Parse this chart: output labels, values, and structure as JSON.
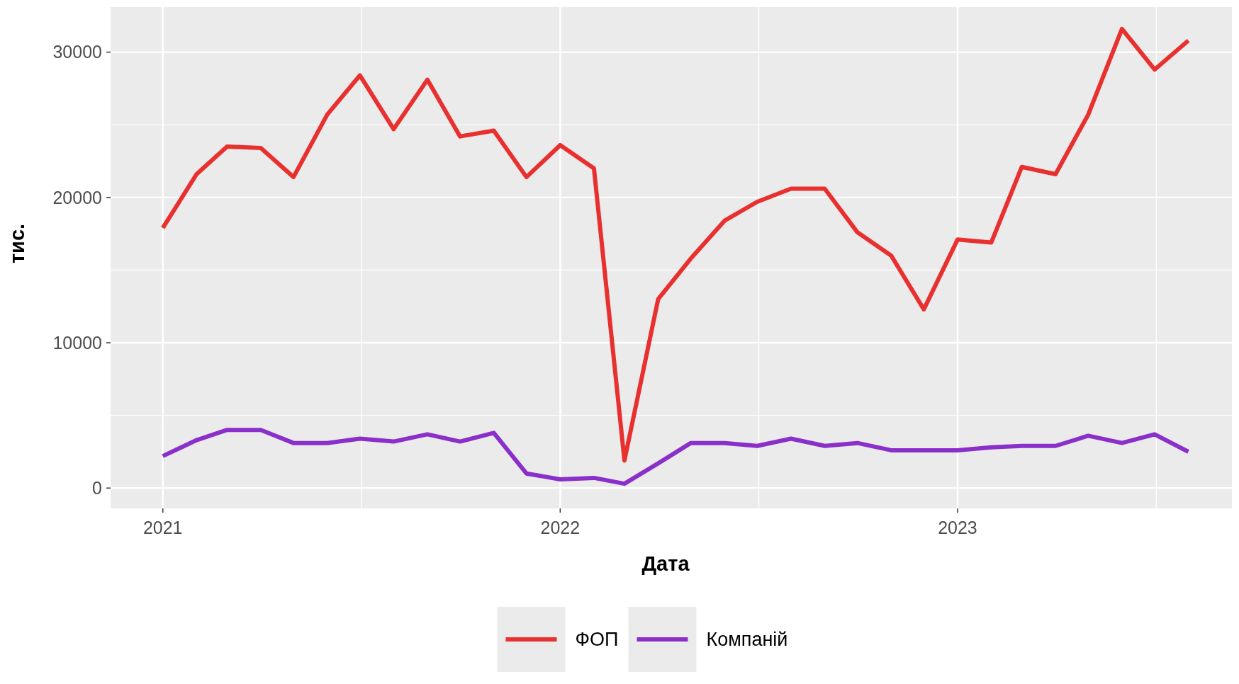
{
  "chart_data": {
    "type": "line",
    "xlabel": "Дата",
    "ylabel": "тис.",
    "x": [
      "2021-01",
      "2021-02",
      "2021-03",
      "2021-04",
      "2021-05",
      "2021-06",
      "2021-07",
      "2021-08",
      "2021-09",
      "2021-10",
      "2021-11",
      "2021-12",
      "2022-01",
      "2022-02",
      "2022-03",
      "2022-04",
      "2022-05",
      "2022-06",
      "2022-07",
      "2022-08",
      "2022-09",
      "2022-10",
      "2022-11",
      "2022-12",
      "2023-01",
      "2023-02",
      "2023-03",
      "2023-04",
      "2023-05",
      "2023-06",
      "2023-07",
      "2023-08"
    ],
    "series": [
      {
        "name": "ФОП",
        "color": "#e8302f",
        "values": [
          17900,
          21600,
          23500,
          23400,
          21400,
          25700,
          28400,
          24700,
          28100,
          24200,
          24600,
          21400,
          23600,
          22000,
          1900,
          13000,
          15800,
          18400,
          19700,
          20600,
          20600,
          17600,
          16000,
          12300,
          17100,
          16900,
          22100,
          21600,
          25700,
          31600,
          28800,
          30800
        ]
      },
      {
        "name": "Компаній",
        "color": "#8a2fc9",
        "values": [
          2200,
          3300,
          4000,
          4000,
          3100,
          3100,
          3400,
          3200,
          3700,
          3200,
          3800,
          1000,
          600,
          700,
          300,
          1700,
          3100,
          3100,
          2900,
          3400,
          2900,
          3100,
          2600,
          2600,
          2600,
          2800,
          2900,
          2900,
          3600,
          3100,
          3700,
          2500
        ]
      }
    ],
    "xlim": [
      "2020-11-14",
      "2023-09-10"
    ],
    "xticks": [
      {
        "value": "2021-01-01",
        "label": "2021"
      },
      {
        "value": "2022-01-01",
        "label": "2022"
      },
      {
        "value": "2023-01-01",
        "label": "2023"
      }
    ],
    "ylim": [
      -1400,
      33100
    ],
    "yticks": [
      0,
      10000,
      20000,
      30000
    ],
    "grid": true,
    "legend": "bottom",
    "line_style": "solid",
    "marker": "none"
  }
}
